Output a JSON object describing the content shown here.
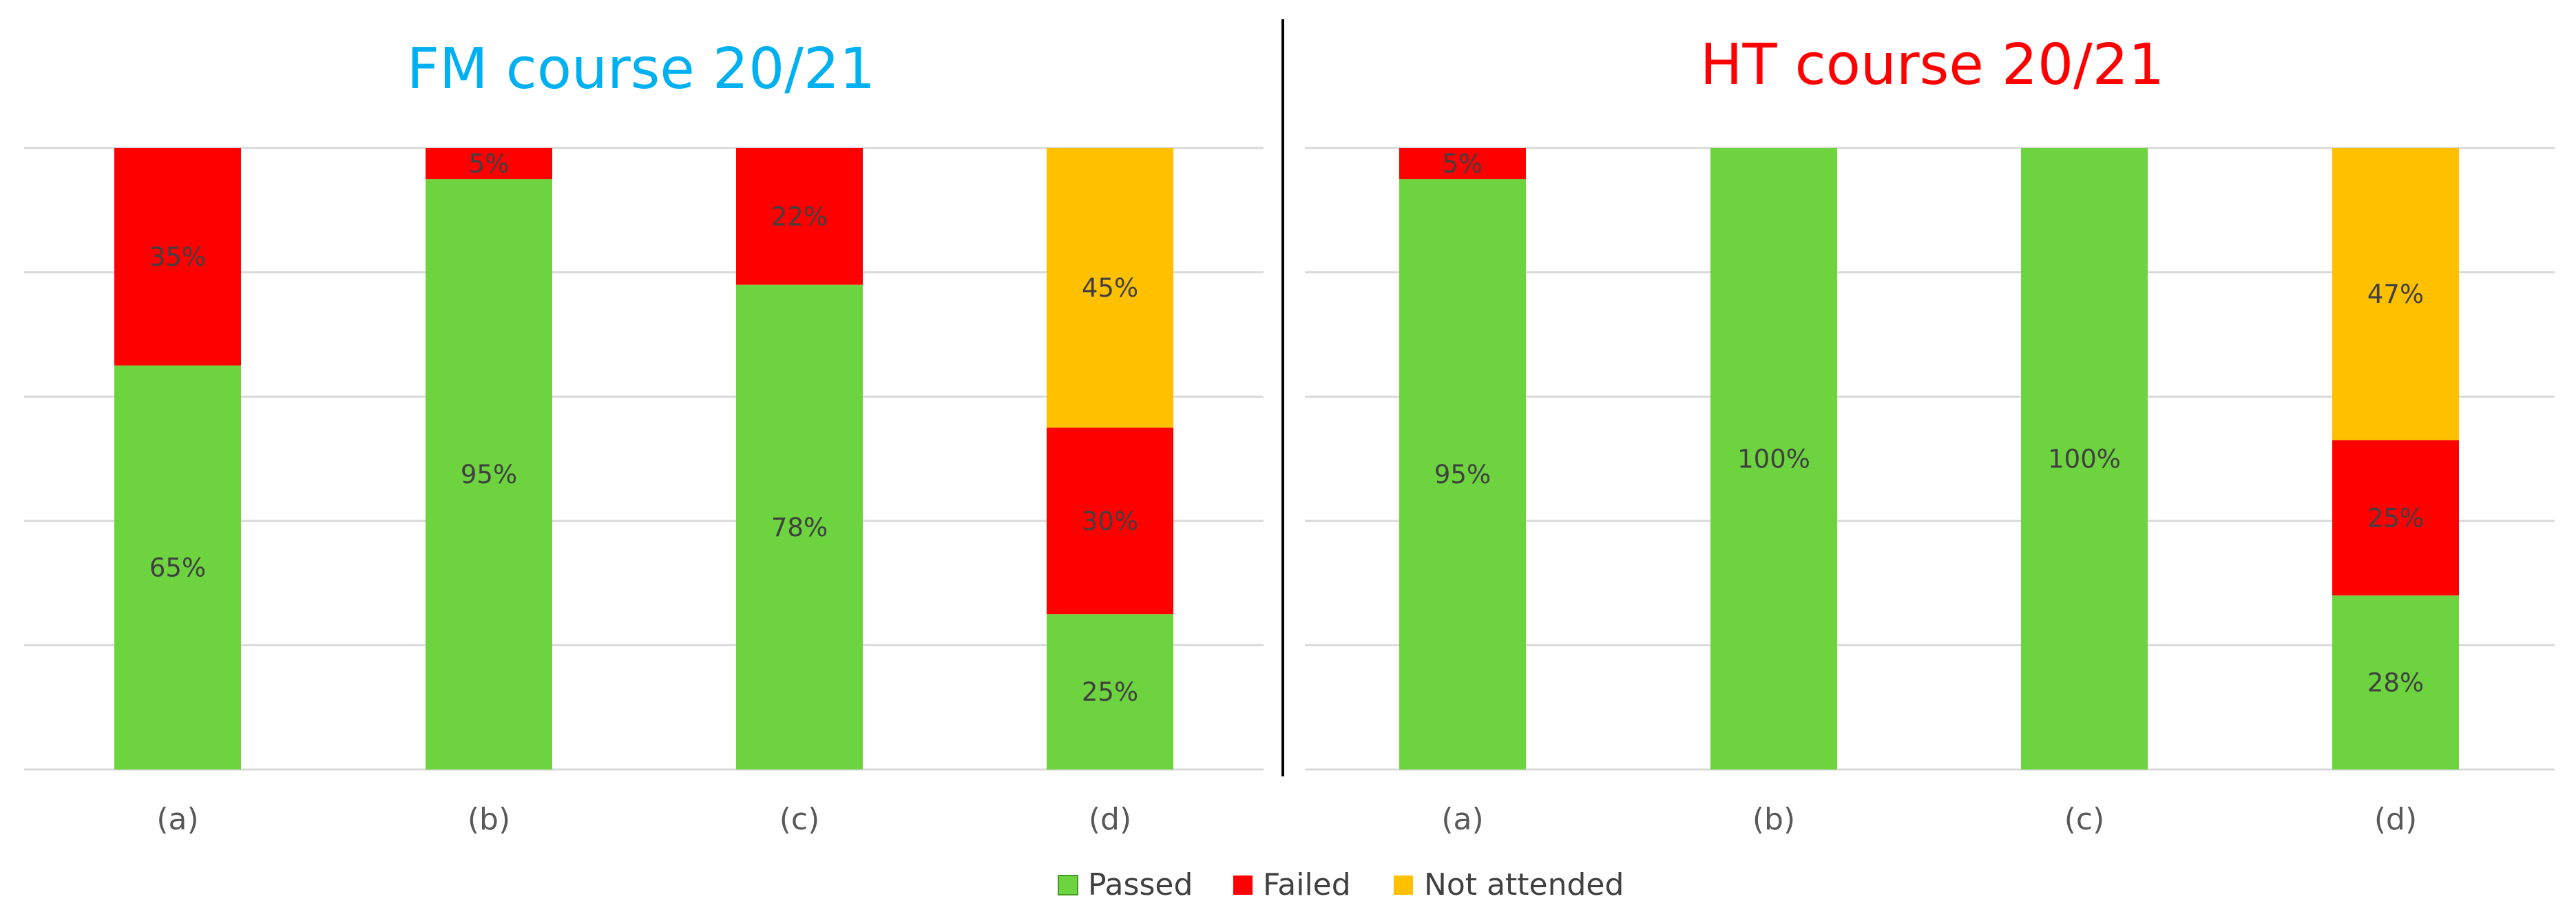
{
  "chart_data": [
    {
      "type": "bar",
      "stacked": true,
      "title": "FM course 20/21",
      "title_color": "#00B0F0",
      "categories": [
        "(a)",
        "(b)",
        "(c)",
        "(d)"
      ],
      "xlabel": "",
      "ylabel": "",
      "ylim": [
        0,
        100
      ],
      "grid": true,
      "series": [
        {
          "name": "Passed",
          "color": "#6DD43F",
          "values": [
            65,
            95,
            78,
            25
          ],
          "labels": [
            "65%",
            "95%",
            "78%",
            "25%"
          ]
        },
        {
          "name": "Failed",
          "color": "#FF0000",
          "values": [
            35,
            5,
            22,
            30
          ],
          "labels": [
            "35%",
            "5%",
            "22%",
            "30%"
          ]
        },
        {
          "name": "Not attended",
          "color": "#FFC000",
          "values": [
            0,
            0,
            0,
            45
          ],
          "labels": [
            "",
            "",
            "",
            "45%"
          ]
        }
      ]
    },
    {
      "type": "bar",
      "stacked": true,
      "title": "HT course 20/21",
      "title_color": "#FF0000",
      "categories": [
        "(a)",
        "(b)",
        "(c)",
        "(d)"
      ],
      "xlabel": "",
      "ylabel": "",
      "ylim": [
        0,
        100
      ],
      "grid": true,
      "series": [
        {
          "name": "Passed",
          "color": "#6DD43F",
          "values": [
            95,
            100,
            100,
            28
          ],
          "labels": [
            "95%",
            "100%",
            "100%",
            "28%"
          ]
        },
        {
          "name": "Failed",
          "color": "#FF0000",
          "values": [
            5,
            0,
            0,
            25
          ],
          "labels": [
            "5%",
            "",
            "",
            "25%"
          ]
        },
        {
          "name": "Not attended",
          "color": "#FFC000",
          "values": [
            0,
            0,
            0,
            47
          ],
          "labels": [
            "",
            "",
            "",
            "47%"
          ]
        }
      ]
    }
  ],
  "legend": {
    "position": "bottom",
    "items": [
      {
        "label": "Passed",
        "color": "#6DD43F"
      },
      {
        "label": "Failed",
        "color": "#FF0000"
      },
      {
        "label": "Not attended",
        "color": "#FFC000"
      }
    ]
  }
}
